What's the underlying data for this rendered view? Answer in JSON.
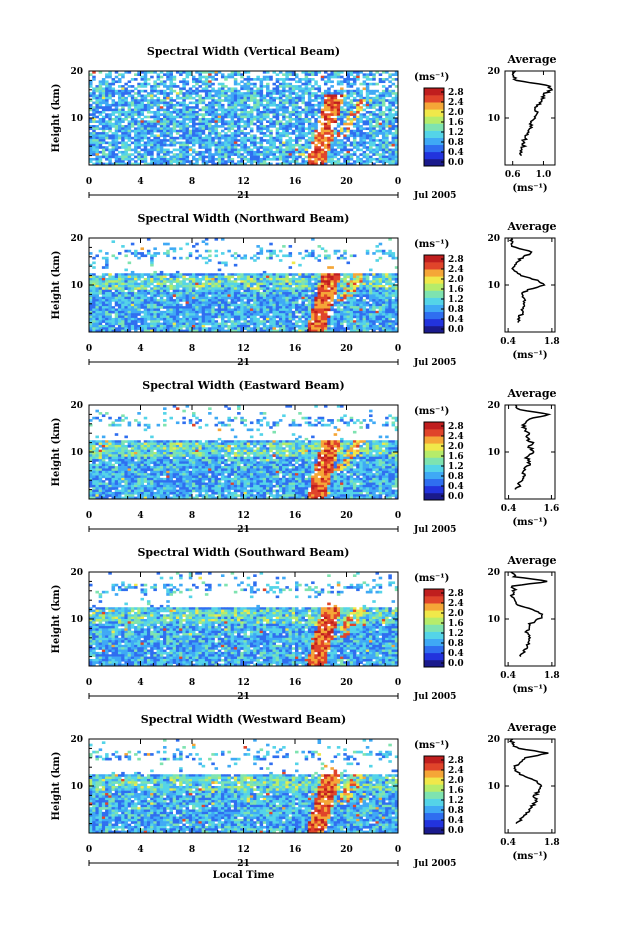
{
  "chart_data": [
    {
      "type": "heatmap",
      "title": "Spectral Width (Vertical Beam)",
      "ylabel": "Height (km)",
      "xticks": [
        "0",
        "4",
        "8",
        "12",
        "16",
        "20",
        "0"
      ],
      "yticks": [
        "10",
        "20"
      ],
      "date_day": "21",
      "date_label": "Jul 2005",
      "colorbar": {
        "unit": "(ms⁻¹)",
        "ticks": [
          "2.8",
          "2.4",
          "2.0",
          "1.6",
          "1.2",
          "0.8",
          "0.4",
          "0.0"
        ]
      },
      "profile": {
        "title": "Average",
        "xticks": [
          "0.6",
          "1.0"
        ],
        "yticks": [
          "10",
          "20"
        ],
        "xlabel": "(ms⁻¹)",
        "xlim": [
          0.5,
          1.15
        ],
        "heights": [
          2,
          3,
          4,
          5,
          6,
          7,
          8,
          9,
          10,
          11,
          12,
          13,
          14,
          15,
          16,
          17,
          18,
          19,
          20
        ],
        "values": [
          0.7,
          0.72,
          0.74,
          0.73,
          0.78,
          0.8,
          0.85,
          0.83,
          0.9,
          0.92,
          0.88,
          0.95,
          0.98,
          1.0,
          1.1,
          1.05,
          0.65,
          0.6,
          0.62
        ]
      }
    },
    {
      "type": "heatmap",
      "title": "Spectral Width (Northward Beam)",
      "ylabel": "Height (km)",
      "xticks": [
        "0",
        "4",
        "8",
        "12",
        "16",
        "20",
        "0"
      ],
      "yticks": [
        "10",
        "20"
      ],
      "date_day": "21",
      "date_label": "Jul 2005",
      "colorbar": {
        "unit": "(ms⁻¹)",
        "ticks": [
          "2.8",
          "2.4",
          "2.0",
          "1.6",
          "1.2",
          "0.8",
          "0.4",
          "0.0"
        ]
      },
      "profile": {
        "title": "Average",
        "xticks": [
          "0.4",
          "1.8"
        ],
        "yticks": [
          "10",
          "20"
        ],
        "xlabel": "(ms⁻¹)",
        "xlim": [
          0.3,
          1.9
        ],
        "heights": [
          2,
          3,
          4,
          5,
          6,
          7,
          8,
          9,
          10,
          11,
          12,
          13,
          14,
          15,
          16,
          17,
          18,
          19,
          20
        ],
        "values": [
          0.7,
          0.75,
          0.85,
          0.9,
          0.95,
          0.9,
          0.85,
          1.0,
          1.6,
          1.3,
          0.8,
          0.6,
          0.55,
          0.7,
          0.9,
          1.2,
          0.6,
          0.5,
          0.55
        ]
      }
    },
    {
      "type": "heatmap",
      "title": "Spectral Width (Eastward Beam)",
      "ylabel": "Height (km)",
      "xticks": [
        "0",
        "4",
        "8",
        "12",
        "16",
        "20",
        "0"
      ],
      "yticks": [
        "10",
        "20"
      ],
      "date_day": "21",
      "date_label": "Jul 2005",
      "colorbar": {
        "unit": "(ms⁻¹)",
        "ticks": [
          "2.8",
          "2.4",
          "2.0",
          "1.6",
          "1.2",
          "0.8",
          "0.4",
          "0.0"
        ]
      },
      "profile": {
        "title": "Average",
        "xticks": [
          "0.4",
          "1.6"
        ],
        "yticks": [
          "10",
          "20"
        ],
        "xlabel": "(ms⁻¹)",
        "xlim": [
          0.3,
          1.7
        ],
        "heights": [
          2,
          3,
          4,
          5,
          6,
          7,
          8,
          9,
          10,
          11,
          12,
          13,
          14,
          15,
          16,
          17,
          18,
          19,
          20
        ],
        "values": [
          0.6,
          0.7,
          0.75,
          0.85,
          0.8,
          0.95,
          1.0,
          0.9,
          1.1,
          1.0,
          1.05,
          0.9,
          0.95,
          0.85,
          0.8,
          1.0,
          1.5,
          0.7,
          0.6
        ]
      }
    },
    {
      "type": "heatmap",
      "title": "Spectral Width (Southward Beam)",
      "ylabel": "Height (km)",
      "xticks": [
        "0",
        "4",
        "8",
        "12",
        "16",
        "20",
        "0"
      ],
      "yticks": [
        "10",
        "20"
      ],
      "date_day": "21",
      "date_label": "Jul 2005",
      "colorbar": {
        "unit": "(ms⁻¹)",
        "ticks": [
          "2.8",
          "2.4",
          "2.0",
          "1.6",
          "1.2",
          "0.8",
          "0.4",
          "0.0"
        ]
      },
      "profile": {
        "title": "Average",
        "xticks": [
          "0.4",
          "1.8"
        ],
        "yticks": [
          "10",
          "20"
        ],
        "xlabel": "(ms⁻¹)",
        "xlim": [
          0.3,
          1.9
        ],
        "heights": [
          2,
          3,
          4,
          5,
          6,
          7,
          8,
          9,
          10,
          11,
          12,
          13,
          14,
          15,
          16,
          17,
          18,
          19,
          20
        ],
        "values": [
          0.8,
          0.9,
          1.0,
          1.05,
          1.1,
          1.0,
          1.05,
          1.1,
          1.4,
          1.5,
          1.2,
          0.7,
          0.55,
          0.5,
          0.6,
          0.55,
          1.7,
          0.6,
          0.5
        ]
      }
    },
    {
      "type": "heatmap",
      "title": "Spectral Width (Westward Beam)",
      "ylabel": "Height (km)",
      "xticks": [
        "0",
        "4",
        "8",
        "12",
        "16",
        "20",
        "0"
      ],
      "yticks": [
        "10",
        "20"
      ],
      "date_day": "21",
      "date_label": "Jul 2005",
      "xlabel": "Local Time",
      "colorbar": {
        "unit": "(ms⁻¹)",
        "ticks": [
          "2.8",
          "2.4",
          "2.0",
          "1.6",
          "1.2",
          "0.8",
          "0.4",
          "0.0"
        ]
      },
      "profile": {
        "title": "Average",
        "xticks": [
          "0.4",
          "1.8"
        ],
        "yticks": [
          "10",
          "20"
        ],
        "xlabel": "(ms⁻¹)",
        "xlim": [
          0.3,
          1.9
        ],
        "heights": [
          2,
          3,
          4,
          5,
          6,
          7,
          8,
          9,
          10,
          11,
          12,
          13,
          14,
          15,
          16,
          17,
          18,
          19,
          20
        ],
        "values": [
          0.7,
          0.8,
          1.0,
          1.1,
          1.2,
          1.3,
          1.25,
          1.4,
          1.5,
          1.3,
          0.9,
          0.7,
          0.6,
          0.8,
          1.0,
          1.7,
          0.7,
          0.55,
          0.5
        ]
      }
    }
  ],
  "colors": {
    "colormap": [
      "#1a1a8c",
      "#2233dd",
      "#2f6ef0",
      "#3fa9f5",
      "#54d4e8",
      "#7ee3b0",
      "#b6ec6a",
      "#f0e84a",
      "#f5a637",
      "#e0442a",
      "#c01e1e"
    ],
    "profile_line": "#000000"
  }
}
